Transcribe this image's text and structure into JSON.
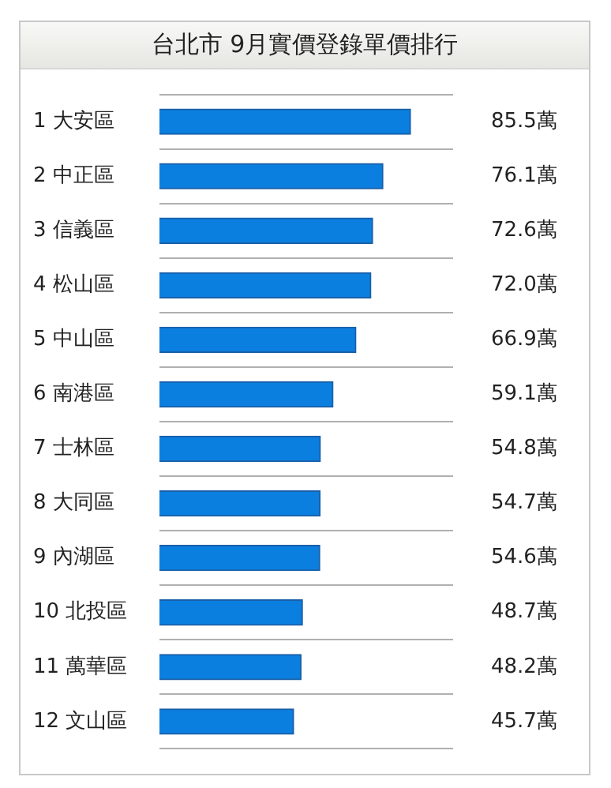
{
  "chart_data": {
    "type": "bar",
    "orientation": "horizontal",
    "title": "台北市 9月實價登錄單價排行",
    "categories": [
      "1 大安區",
      "2 中正區",
      "3 信義區",
      "4 松山區",
      "5 中山區",
      "6 南港區",
      "7 士林區",
      "8 大同區",
      "9 內湖區",
      "10 北投區",
      "11 萬華區",
      "12 文山區"
    ],
    "values": [
      85.5,
      76.1,
      72.6,
      72.0,
      66.9,
      59.1,
      54.8,
      54.7,
      54.6,
      48.7,
      48.2,
      45.7
    ],
    "value_labels": [
      "85.5萬",
      "76.1萬",
      "72.6萬",
      "72.0萬",
      "66.9萬",
      "59.1萬",
      "54.8萬",
      "54.7萬",
      "54.6萬",
      "48.7萬",
      "48.2萬",
      "45.7萬"
    ],
    "color": "#0a7fe0",
    "grid": "y",
    "legend": false
  }
}
